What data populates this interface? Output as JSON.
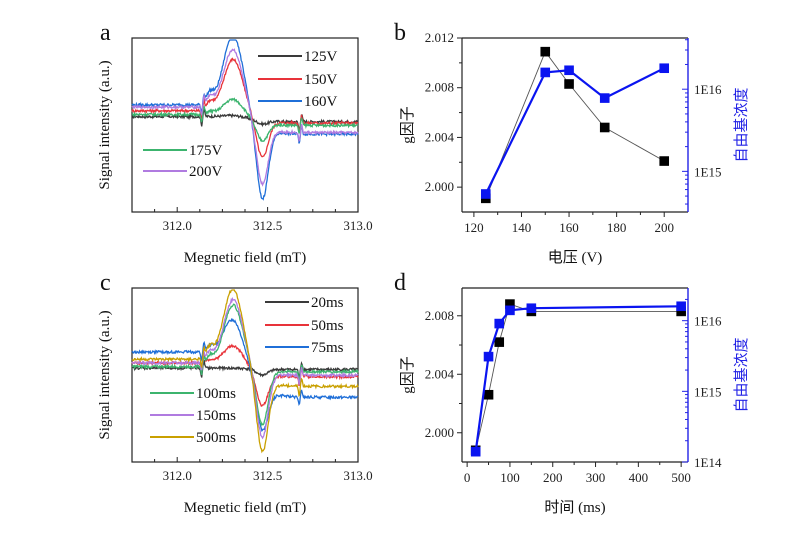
{
  "chart_data": [
    {
      "id": "a",
      "type": "line",
      "panel_letter": "a",
      "title": "",
      "xlabel": "Megnetic field (mT)",
      "ylabel": "Signal intensity (a.u.)",
      "xlim": [
        311.75,
        313.0
      ],
      "xticks": [
        312.0,
        312.5,
        313.0
      ],
      "xtick_labels": [
        "312.0",
        "312.5",
        "313.0"
      ],
      "grid": false,
      "yticks_shown": false,
      "legend": [
        {
          "label": "125V",
          "placement": "top-right"
        },
        {
          "label": "150V",
          "placement": "top-right"
        },
        {
          "label": "160V",
          "placement": "top-right"
        },
        {
          "label": "175V",
          "placement": "bottom-left"
        },
        {
          "label": "200V",
          "placement": "bottom-left"
        }
      ],
      "series": [
        {
          "name": "125V",
          "color": "#3a3a3a",
          "baseline_left": 0.02,
          "baseline_right": -0.05,
          "peak_max": 0.02,
          "peak_min": -0.05
        },
        {
          "name": "150V",
          "color": "#e8333a",
          "baseline_left": 0.1,
          "baseline_right": -0.07,
          "peak_max": 0.72,
          "peak_min": -0.52
        },
        {
          "name": "160V",
          "color": "#1f6fd8",
          "baseline_left": 0.18,
          "baseline_right": -0.22,
          "peak_max": 1.0,
          "peak_min": -1.0
        },
        {
          "name": "175V",
          "color": "#3cb46e",
          "baseline_left": 0.05,
          "baseline_right": -0.1,
          "peak_max": 0.22,
          "peak_min": -0.25
        },
        {
          "name": "200V",
          "color": "#b07be0",
          "baseline_left": 0.15,
          "baseline_right": -0.2,
          "peak_max": 0.82,
          "peak_min": -0.8
        }
      ]
    },
    {
      "id": "b",
      "type": "line",
      "panel_letter": "b",
      "title": "",
      "xlabel": "电压 (V)",
      "ylabel": "g因子",
      "ylabel_right": "自由基浓度",
      "xlim": [
        115,
        210
      ],
      "xticks": [
        120,
        140,
        160,
        180,
        200
      ],
      "ylim": [
        1.998,
        2.012
      ],
      "yticks": [
        2.0,
        2.004,
        2.008,
        2.012
      ],
      "ytick_labels": [
        "2.000",
        "2.004",
        "2.008",
        "2.012"
      ],
      "ylim_right": [
        320000000000000.0,
        4.2e+16
      ],
      "yscale_right": "log",
      "yticks_right_labels": [
        "1E15",
        "1E16"
      ],
      "grid": false,
      "series": [
        {
          "name": "g因子",
          "axis": "left",
          "color": "#000000",
          "x": [
            125,
            150,
            160,
            175,
            200
          ],
          "values": [
            1.9991,
            2.0109,
            2.0083,
            2.0048,
            2.0021
          ]
        },
        {
          "name": "自由基浓度",
          "axis": "right",
          "color": "#0a14f0",
          "x": [
            125,
            150,
            160,
            175,
            200
          ],
          "values": [
            530000000000000.0,
            1.6e+16,
            1.7e+16,
            7800000000000000.0,
            1.8e+16
          ]
        }
      ]
    },
    {
      "id": "c",
      "type": "line",
      "panel_letter": "c",
      "title": "",
      "xlabel": "Megnetic field (mT)",
      "ylabel": "Signal intensity (a.u.)",
      "xlim": [
        311.75,
        313.0
      ],
      "xticks": [
        312.0,
        312.5,
        313.0
      ],
      "xtick_labels": [
        "312.0",
        "312.5",
        "313.0"
      ],
      "grid": false,
      "yticks_shown": false,
      "legend": [
        {
          "label": "20ms",
          "placement": "top-right"
        },
        {
          "label": "50ms",
          "placement": "top-right"
        },
        {
          "label": "75ms",
          "placement": "top-right"
        },
        {
          "label": "100ms",
          "placement": "bottom-left"
        },
        {
          "label": "150ms",
          "placement": "bottom-left"
        },
        {
          "label": "500ms",
          "placement": "bottom-left"
        }
      ],
      "series": [
        {
          "name": "20ms",
          "color": "#3a3a3a",
          "baseline_left": 0.0,
          "baseline_right": -0.02,
          "peak_max": 0.0,
          "peak_min": -0.08
        },
        {
          "name": "50ms",
          "color": "#e8333a",
          "baseline_left": 0.07,
          "baseline_right": -0.12,
          "peak_max": 0.25,
          "peak_min": -0.45
        },
        {
          "name": "75ms",
          "color": "#1f6fd8",
          "baseline_left": 0.22,
          "baseline_right": -0.4,
          "peak_max": 0.5,
          "peak_min": -0.62
        },
        {
          "name": "100ms",
          "color": "#3cb46e",
          "baseline_left": 0.02,
          "baseline_right": -0.05,
          "peak_max": 0.85,
          "peak_min": -0.75
        },
        {
          "name": "150ms",
          "color": "#b07be0",
          "baseline_left": 0.07,
          "baseline_right": -0.1,
          "peak_max": 0.88,
          "peak_min": -0.9
        },
        {
          "name": "500ms",
          "color": "#c9a000",
          "baseline_left": 0.12,
          "baseline_right": -0.25,
          "peak_max": 1.0,
          "peak_min": -1.0
        }
      ]
    },
    {
      "id": "d",
      "type": "line",
      "panel_letter": "d",
      "title": "",
      "xlabel": "时间 (ms)",
      "ylabel": "g因子",
      "ylabel_right": "自由基浓度",
      "xlim": [
        -12,
        516
      ],
      "xticks": [
        0,
        100,
        200,
        300,
        400,
        500
      ],
      "ylim": [
        1.998,
        2.0099
      ],
      "yticks": [
        2.0,
        2.004,
        2.008
      ],
      "ytick_labels": [
        "2.000",
        "2.004",
        "2.008"
      ],
      "ylim_right": [
        100000000000000.0,
        2.9e+16
      ],
      "yscale_right": "log",
      "yticks_right_labels": [
        "1E14",
        "1E15",
        "1E16"
      ],
      "grid": false,
      "series": [
        {
          "name": "g因子",
          "axis": "left",
          "color": "#000000",
          "x": [
            20,
            50,
            75,
            100,
            150,
            500
          ],
          "values": [
            1.9988,
            2.0026,
            2.0062,
            2.0088,
            2.0083,
            2.0083
          ]
        },
        {
          "name": "自由基浓度",
          "axis": "right",
          "color": "#0a14f0",
          "x": [
            20,
            50,
            75,
            100,
            150,
            500
          ],
          "values": [
            140000000000000.0,
            3100000000000000.0,
            9100000000000000.0,
            1.4e+16,
            1.5e+16,
            1.6e+16
          ]
        }
      ]
    }
  ]
}
